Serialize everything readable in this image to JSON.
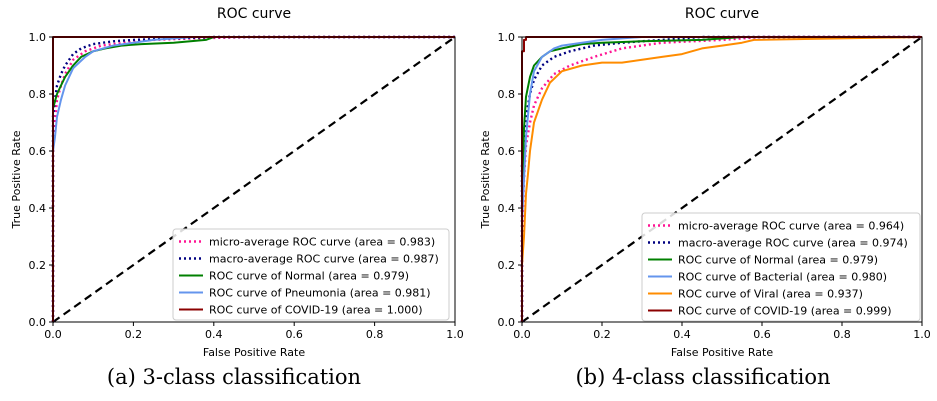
{
  "chart_data": [
    {
      "type": "line",
      "title": "ROC curve",
      "xlabel": "False Positive Rate",
      "ylabel": "True Positive Rate",
      "xlim": [
        0,
        1
      ],
      "ylim": [
        0,
        1
      ],
      "xticks": [
        "0.0",
        "0.2",
        "0.4",
        "0.6",
        "0.8",
        "1.0"
      ],
      "yticks": [
        "0.0",
        "0.2",
        "0.4",
        "0.6",
        "0.8",
        "1.0"
      ],
      "grid": false,
      "legend_position": "lower-right",
      "caption": "(a) 3-class classification",
      "series": [
        {
          "name": "micro-average ROC curve (area = 0.983)",
          "color": "#ff1493",
          "style": "dotted",
          "x": [
            0,
            0,
            0.005,
            0.01,
            0.02,
            0.03,
            0.05,
            0.08,
            0.12,
            0.18,
            0.25,
            0.35,
            0.5,
            1
          ],
          "y": [
            0,
            0.6,
            0.7,
            0.78,
            0.83,
            0.87,
            0.92,
            0.95,
            0.97,
            0.98,
            0.99,
            0.995,
            1,
            1
          ]
        },
        {
          "name": "macro-average ROC curve (area = 0.987)",
          "color": "#000080",
          "style": "dotted",
          "x": [
            0,
            0,
            0.005,
            0.01,
            0.02,
            0.03,
            0.05,
            0.07,
            0.1,
            0.15,
            0.2,
            0.3,
            0.4,
            1
          ],
          "y": [
            0,
            0.72,
            0.78,
            0.83,
            0.87,
            0.9,
            0.94,
            0.96,
            0.975,
            0.985,
            0.99,
            0.995,
            1,
            1
          ]
        },
        {
          "name": "ROC curve of Normal (area = 0.979)",
          "color": "#008000",
          "style": "solid",
          "x": [
            0,
            0,
            0.01,
            0.02,
            0.03,
            0.05,
            0.07,
            0.1,
            0.13,
            0.17,
            0.22,
            0.3,
            0.38,
            0.4,
            1
          ],
          "y": [
            0,
            0.75,
            0.8,
            0.83,
            0.86,
            0.9,
            0.93,
            0.95,
            0.96,
            0.97,
            0.975,
            0.98,
            0.99,
            1,
            1
          ]
        },
        {
          "name": "ROC curve of Pneumonia (area = 0.981)",
          "color": "#6495ed",
          "style": "solid",
          "x": [
            0,
            0,
            0.005,
            0.01,
            0.02,
            0.03,
            0.05,
            0.08,
            0.1,
            0.15,
            0.2,
            0.25,
            0.35,
            1
          ],
          "y": [
            0,
            0.6,
            0.65,
            0.72,
            0.78,
            0.83,
            0.89,
            0.93,
            0.95,
            0.97,
            0.98,
            0.99,
            1,
            1
          ]
        },
        {
          "name": "ROC curve of COVID-19 (area = 1.000)",
          "color": "#8b0000",
          "style": "solid",
          "x": [
            0,
            0,
            1
          ],
          "y": [
            0,
            1,
            1
          ]
        }
      ]
    },
    {
      "type": "line",
      "title": "ROC curve",
      "xlabel": "False Positive Rate",
      "ylabel": "True Positive Rate",
      "xlim": [
        0,
        1
      ],
      "ylim": [
        0,
        1
      ],
      "xticks": [
        "0.0",
        "0.2",
        "0.4",
        "0.6",
        "0.8",
        "1.0"
      ],
      "yticks": [
        "0.0",
        "0.2",
        "0.4",
        "0.6",
        "0.8",
        "1.0"
      ],
      "grid": false,
      "legend_position": "lower-right",
      "caption": "(b) 4-class classification",
      "series": [
        {
          "name": "micro-average ROC curve (area = 0.964)",
          "color": "#ff1493",
          "style": "dotted",
          "x": [
            0,
            0,
            0.005,
            0.01,
            0.02,
            0.03,
            0.05,
            0.08,
            0.12,
            0.18,
            0.25,
            0.35,
            0.5,
            0.6,
            1
          ],
          "y": [
            0,
            0.3,
            0.5,
            0.62,
            0.7,
            0.76,
            0.82,
            0.87,
            0.9,
            0.93,
            0.96,
            0.98,
            0.99,
            1,
            1
          ]
        },
        {
          "name": "macro-average ROC curve (area = 0.974)",
          "color": "#000080",
          "style": "dotted",
          "x": [
            0,
            0,
            0.005,
            0.01,
            0.02,
            0.03,
            0.05,
            0.08,
            0.12,
            0.18,
            0.25,
            0.35,
            0.45,
            1
          ],
          "y": [
            0,
            0.55,
            0.65,
            0.72,
            0.8,
            0.85,
            0.9,
            0.93,
            0.95,
            0.97,
            0.98,
            0.99,
            1,
            1
          ]
        },
        {
          "name": "ROC curve of Normal (area = 0.979)",
          "color": "#008000",
          "style": "solid",
          "x": [
            0,
            0,
            0.005,
            0.01,
            0.02,
            0.03,
            0.05,
            0.07,
            0.1,
            0.15,
            0.2,
            0.3,
            0.45,
            0.55,
            1
          ],
          "y": [
            0,
            0.4,
            0.68,
            0.79,
            0.86,
            0.9,
            0.93,
            0.95,
            0.96,
            0.975,
            0.98,
            0.985,
            0.99,
            1,
            1
          ]
        },
        {
          "name": "ROC curve of Bacterial (area = 0.980)",
          "color": "#6495ed",
          "style": "solid",
          "x": [
            0,
            0,
            0.005,
            0.01,
            0.02,
            0.03,
            0.05,
            0.08,
            0.1,
            0.15,
            0.2,
            0.25,
            0.3,
            1
          ],
          "y": [
            0,
            0.35,
            0.5,
            0.65,
            0.8,
            0.88,
            0.93,
            0.96,
            0.97,
            0.98,
            0.99,
            0.995,
            1,
            1
          ]
        },
        {
          "name": "ROC curve of Viral (area = 0.937)",
          "color": "#ff8c00",
          "style": "solid",
          "x": [
            0,
            0,
            0.005,
            0.01,
            0.015,
            0.02,
            0.03,
            0.05,
            0.07,
            0.1,
            0.15,
            0.2,
            0.25,
            0.3,
            0.35,
            0.4,
            0.45,
            0.5,
            0.55,
            0.58,
            1
          ],
          "y": [
            0,
            0.2,
            0.3,
            0.45,
            0.52,
            0.6,
            0.7,
            0.78,
            0.84,
            0.88,
            0.9,
            0.91,
            0.91,
            0.92,
            0.93,
            0.94,
            0.96,
            0.97,
            0.98,
            0.99,
            1
          ]
        },
        {
          "name": "ROC curve of COVID-19 (area = 0.999)",
          "color": "#8b0000",
          "style": "solid",
          "x": [
            0,
            0,
            0.005,
            0.005,
            0.01,
            0.01,
            1
          ],
          "y": [
            0,
            0.95,
            0.95,
            0.99,
            0.99,
            1,
            1
          ]
        }
      ]
    }
  ]
}
